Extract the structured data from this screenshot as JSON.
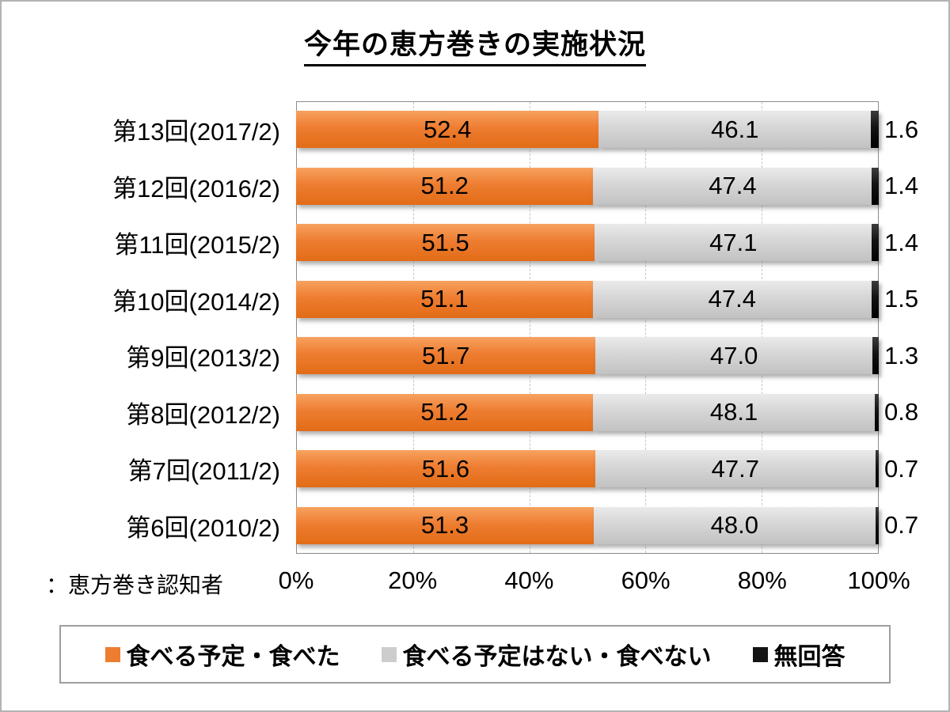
{
  "title": "今年の恵方巻きの実施状況",
  "note": "：恵方巻き認知者",
  "chart_data": {
    "type": "bar",
    "orientation": "horizontal_stacked",
    "title": "今年の恵方巻きの実施状況",
    "categories": [
      "第13回(2017/2)",
      "第12回(2016/2)",
      "第11回(2015/2)",
      "第10回(2014/2)",
      "第9回(2013/2)",
      "第8回(2012/2)",
      "第7回(2011/2)",
      "第6回(2010/2)"
    ],
    "series": [
      {
        "key": "eaten",
        "name": "食べる予定・食べた",
        "color": "#ED7D31",
        "values": [
          52.4,
          51.2,
          51.5,
          51.1,
          51.7,
          51.2,
          51.6,
          51.3
        ]
      },
      {
        "key": "not-eaten",
        "name": "食べる予定はない・食べない",
        "color": "#CDCDCD",
        "values": [
          46.1,
          47.4,
          47.1,
          47.4,
          47.0,
          48.1,
          47.7,
          48.0
        ]
      },
      {
        "key": "no-answer",
        "name": "無回答",
        "color": "#141414",
        "values": [
          1.6,
          1.4,
          1.4,
          1.5,
          1.3,
          0.8,
          0.7,
          0.7
        ]
      }
    ],
    "xlim": [
      0,
      100
    ],
    "xticks": [
      "0%",
      "20%",
      "40%",
      "60%",
      "80%",
      "100%"
    ],
    "value_label_format": "one_decimal",
    "grid": "vertical_dashed",
    "legend_position": "bottom"
  }
}
